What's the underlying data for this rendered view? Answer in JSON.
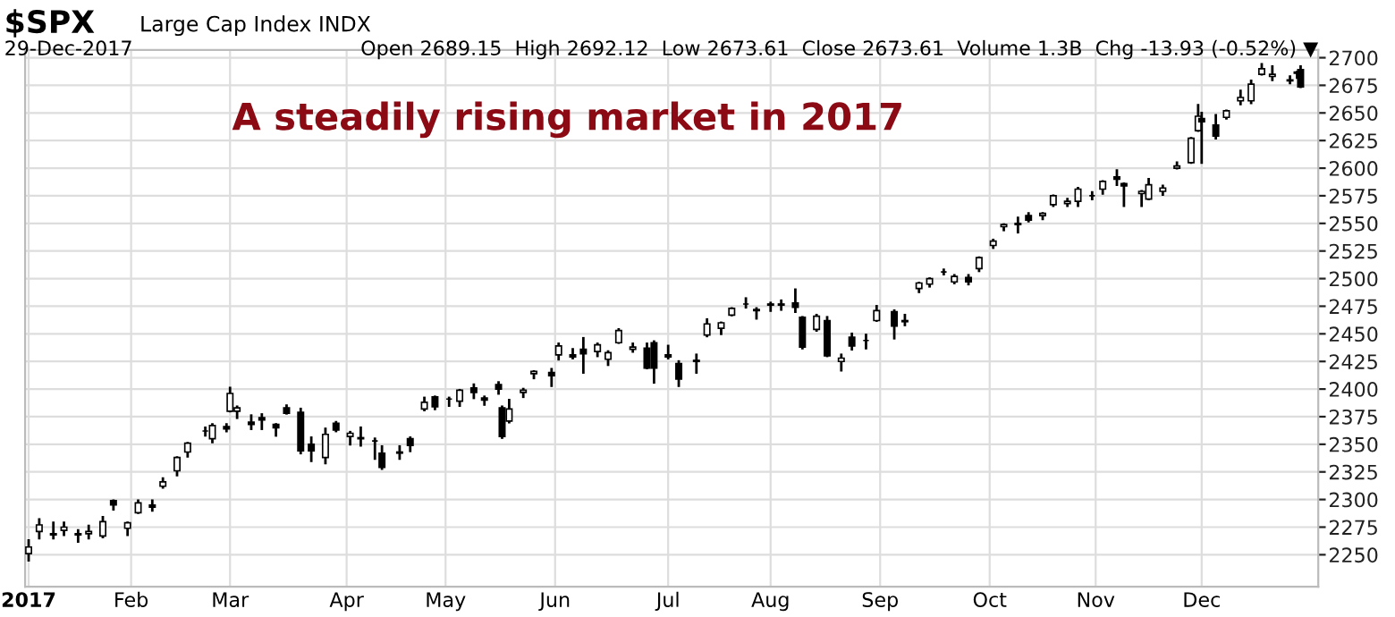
{
  "chart_data": {
    "type": "candlestick",
    "title": "A steadily rising market in 2017",
    "annotations": [
      "$SPX",
      "Large Cap Index INDX",
      "29-Dec-2017",
      "Open 2689.15  High 2692.12  Low 2673.61  Close 2673.61  Volume 1.3B  Chg -13.93 (-0.52%) ▼"
    ],
    "color": "#000000",
    "grid": true,
    "xlim": [
      "2017-01-02",
      "2018-01-03"
    ],
    "xticks": [
      {
        "value": "2017-01-03",
        "label": "2017"
      },
      {
        "value": "2017-02-01",
        "label": "Feb"
      },
      {
        "value": "2017-03-01",
        "label": "Mar"
      },
      {
        "value": "2017-04-03",
        "label": "Apr"
      },
      {
        "value": "2017-05-01",
        "label": "May"
      },
      {
        "value": "2017-06-01",
        "label": "Jun"
      },
      {
        "value": "2017-07-03",
        "label": "Jul"
      },
      {
        "value": "2017-08-01",
        "label": "Aug"
      },
      {
        "value": "2017-09-01",
        "label": "Sep"
      },
      {
        "value": "2017-10-02",
        "label": "Oct"
      },
      {
        "value": "2017-11-01",
        "label": "Nov"
      },
      {
        "value": "2017-12-01",
        "label": "Dec"
      }
    ],
    "ylim": [
      2221,
      2707
    ],
    "yticks": [
      2250,
      2275,
      2300,
      2325,
      2350,
      2375,
      2400,
      2425,
      2450,
      2475,
      2500,
      2525,
      2550,
      2575,
      2600,
      2625,
      2650,
      2675,
      2700
    ],
    "x": [
      "2017-01-03",
      "2017-01-06",
      "2017-01-10",
      "2017-01-13",
      "2017-01-17",
      "2017-01-20",
      "2017-01-24",
      "2017-01-27",
      "2017-01-31",
      "2017-02-03",
      "2017-02-07",
      "2017-02-10",
      "2017-02-14",
      "2017-02-17",
      "2017-02-22",
      "2017-02-24",
      "2017-02-28",
      "2017-03-01",
      "2017-03-03",
      "2017-03-07",
      "2017-03-10",
      "2017-03-14",
      "2017-03-17",
      "2017-03-21",
      "2017-03-24",
      "2017-03-28",
      "2017-03-31",
      "2017-04-04",
      "2017-04-07",
      "2017-04-11",
      "2017-04-13",
      "2017-04-18",
      "2017-04-21",
      "2017-04-25",
      "2017-04-28",
      "2017-05-02",
      "2017-05-05",
      "2017-05-09",
      "2017-05-12",
      "2017-05-16",
      "2017-05-17",
      "2017-05-19",
      "2017-05-23",
      "2017-05-26",
      "2017-05-31",
      "2017-06-02",
      "2017-06-06",
      "2017-06-09",
      "2017-06-13",
      "2017-06-16",
      "2017-06-19",
      "2017-06-23",
      "2017-06-27",
      "2017-06-29",
      "2017-07-03",
      "2017-07-06",
      "2017-07-11",
      "2017-07-14",
      "2017-07-18",
      "2017-07-21",
      "2017-07-25",
      "2017-07-28",
      "2017-08-01",
      "2017-08-04",
      "2017-08-08",
      "2017-08-10",
      "2017-08-14",
      "2017-08-17",
      "2017-08-21",
      "2017-08-24",
      "2017-08-28",
      "2017-08-31",
      "2017-09-05",
      "2017-09-08",
      "2017-09-12",
      "2017-09-15",
      "2017-09-19",
      "2017-09-22",
      "2017-09-26",
      "2017-09-29",
      "2017-10-03",
      "2017-10-06",
      "2017-10-10",
      "2017-10-13",
      "2017-10-17",
      "2017-10-20",
      "2017-10-24",
      "2017-10-27",
      "2017-10-31",
      "2017-11-03",
      "2017-11-07",
      "2017-11-09",
      "2017-11-14",
      "2017-11-16",
      "2017-11-20",
      "2017-11-24",
      "2017-11-28",
      "2017-11-30",
      "2017-12-01",
      "2017-12-05",
      "2017-12-08",
      "2017-12-12",
      "2017-12-15",
      "2017-12-18",
      "2017-12-21",
      "2017-12-26",
      "2017-12-28",
      "2017-12-29"
    ],
    "ohlc": [
      [
        2251,
        2263,
        2245,
        2257
      ],
      [
        2271,
        2282,
        2265,
        2277
      ],
      [
        2268,
        2279,
        2265,
        2269
      ],
      [
        2272,
        2279,
        2268,
        2275
      ],
      [
        2269,
        2272,
        2262,
        2268
      ],
      [
        2269,
        2276,
        2265,
        2271
      ],
      [
        2267,
        2284,
        2266,
        2280
      ],
      [
        2299,
        2299,
        2291,
        2295
      ],
      [
        2274,
        2279,
        2268,
        2279
      ],
      [
        2288,
        2299,
        2288,
        2297
      ],
      [
        2295,
        2299,
        2290,
        2293
      ],
      [
        2312,
        2319,
        2311,
        2316
      ],
      [
        2326,
        2338,
        2322,
        2338
      ],
      [
        2343,
        2351,
        2339,
        2351
      ],
      [
        2362,
        2365,
        2358,
        2362
      ],
      [
        2355,
        2368,
        2352,
        2367
      ],
      [
        2366,
        2368,
        2362,
        2364
      ],
      [
        2380,
        2401,
        2380,
        2396
      ],
      [
        2380,
        2384,
        2374,
        2383
      ],
      [
        2370,
        2376,
        2364,
        2368
      ],
      [
        2374,
        2377,
        2364,
        2372
      ],
      [
        2368,
        2368,
        2358,
        2365
      ],
      [
        2383,
        2385,
        2378,
        2378
      ],
      [
        2379,
        2382,
        2342,
        2344
      ],
      [
        2350,
        2356,
        2335,
        2344
      ],
      [
        2338,
        2364,
        2333,
        2359
      ],
      [
        2369,
        2370,
        2362,
        2363
      ],
      [
        2357,
        2361,
        2350,
        2360
      ],
      [
        2356,
        2365,
        2349,
        2355
      ],
      [
        2353,
        2355,
        2337,
        2353
      ],
      [
        2342,
        2348,
        2328,
        2329
      ],
      [
        2342,
        2348,
        2337,
        2343
      ],
      [
        2355,
        2356,
        2344,
        2349
      ],
      [
        2382,
        2392,
        2381,
        2388
      ],
      [
        2393,
        2393,
        2382,
        2384
      ],
      [
        2391,
        2392,
        2385,
        2391
      ],
      [
        2389,
        2399,
        2385,
        2399
      ],
      [
        2401,
        2404,
        2392,
        2397
      ],
      [
        2392,
        2393,
        2386,
        2390
      ],
      [
        2404,
        2406,
        2396,
        2400
      ],
      [
        2383,
        2384,
        2356,
        2357
      ],
      [
        2371,
        2390,
        2370,
        2382
      ],
      [
        2397,
        2400,
        2393,
        2399
      ],
      [
        2414,
        2416,
        2410,
        2416
      ],
      [
        2415,
        2418,
        2403,
        2412
      ],
      [
        2431,
        2441,
        2427,
        2439
      ],
      [
        2431,
        2436,
        2428,
        2429
      ],
      [
        2436,
        2446,
        2415,
        2432
      ],
      [
        2434,
        2441,
        2430,
        2440
      ],
      [
        2427,
        2434,
        2422,
        2433
      ],
      [
        2442,
        2454,
        2442,
        2453
      ],
      [
        2436,
        2441,
        2434,
        2438
      ],
      [
        2437,
        2441,
        2419,
        2419
      ],
      [
        2442,
        2443,
        2406,
        2419
      ],
      [
        2431,
        2439,
        2428,
        2429
      ],
      [
        2423,
        2425,
        2403,
        2409
      ],
      [
        2425,
        2431,
        2415,
        2426
      ],
      [
        2449,
        2463,
        2448,
        2459
      ],
      [
        2455,
        2460,
        2450,
        2460
      ],
      [
        2467,
        2473,
        2467,
        2473
      ],
      [
        2477,
        2482,
        2474,
        2477
      ],
      [
        2471,
        2473,
        2464,
        2472
      ],
      [
        2477,
        2478,
        2471,
        2476
      ],
      [
        2476,
        2480,
        2472,
        2477
      ],
      [
        2478,
        2490,
        2470,
        2474
      ],
      [
        2465,
        2465,
        2437,
        2438
      ],
      [
        2454,
        2467,
        2453,
        2466
      ],
      [
        2462,
        2465,
        2430,
        2430
      ],
      [
        2425,
        2431,
        2417,
        2428
      ],
      [
        2447,
        2450,
        2436,
        2439
      ],
      [
        2444,
        2449,
        2437,
        2444
      ],
      [
        2462,
        2475,
        2462,
        2471
      ],
      [
        2470,
        2471,
        2446,
        2457
      ],
      [
        2462,
        2467,
        2458,
        2461
      ],
      [
        2491,
        2496,
        2488,
        2496
      ],
      [
        2495,
        2500,
        2493,
        2500
      ],
      [
        2506,
        2508,
        2504,
        2506
      ],
      [
        2497,
        2503,
        2496,
        2502
      ],
      [
        2501,
        2503,
        2495,
        2497
      ],
      [
        2509,
        2519,
        2507,
        2519
      ],
      [
        2530,
        2535,
        2528,
        2534
      ],
      [
        2547,
        2549,
        2544,
        2549
      ],
      [
        2549,
        2555,
        2542,
        2550
      ],
      [
        2557,
        2559,
        2552,
        2553
      ],
      [
        2557,
        2559,
        2554,
        2559
      ],
      [
        2567,
        2575,
        2566,
        2575
      ],
      [
        2568,
        2572,
        2566,
        2570
      ],
      [
        2570,
        2582,
        2566,
        2581
      ],
      [
        2575,
        2578,
        2572,
        2575
      ],
      [
        2581,
        2588,
        2577,
        2588
      ],
      [
        2592,
        2598,
        2585,
        2590
      ],
      [
        2586,
        2586,
        2566,
        2584
      ],
      [
        2577,
        2579,
        2566,
        2579
      ],
      [
        2572,
        2590,
        2572,
        2585
      ],
      [
        2579,
        2584,
        2576,
        2582
      ],
      [
        2600,
        2605,
        2600,
        2602
      ],
      [
        2605,
        2627,
        2605,
        2627
      ],
      [
        2634,
        2657,
        2634,
        2647
      ],
      [
        2645,
        2650,
        2605,
        2642
      ],
      [
        2639,
        2648,
        2627,
        2629
      ],
      [
        2646,
        2652,
        2645,
        2652
      ],
      [
        2661,
        2670,
        2658,
        2664
      ],
      [
        2661,
        2679,
        2659,
        2676
      ],
      [
        2685,
        2694,
        2685,
        2690
      ],
      [
        2683,
        2692,
        2680,
        2685
      ],
      [
        2679,
        2683,
        2677,
        2680
      ],
      [
        2686,
        2687,
        2682,
        2687
      ],
      [
        2689.15,
        2692.12,
        2673.61,
        2673.61
      ]
    ]
  }
}
